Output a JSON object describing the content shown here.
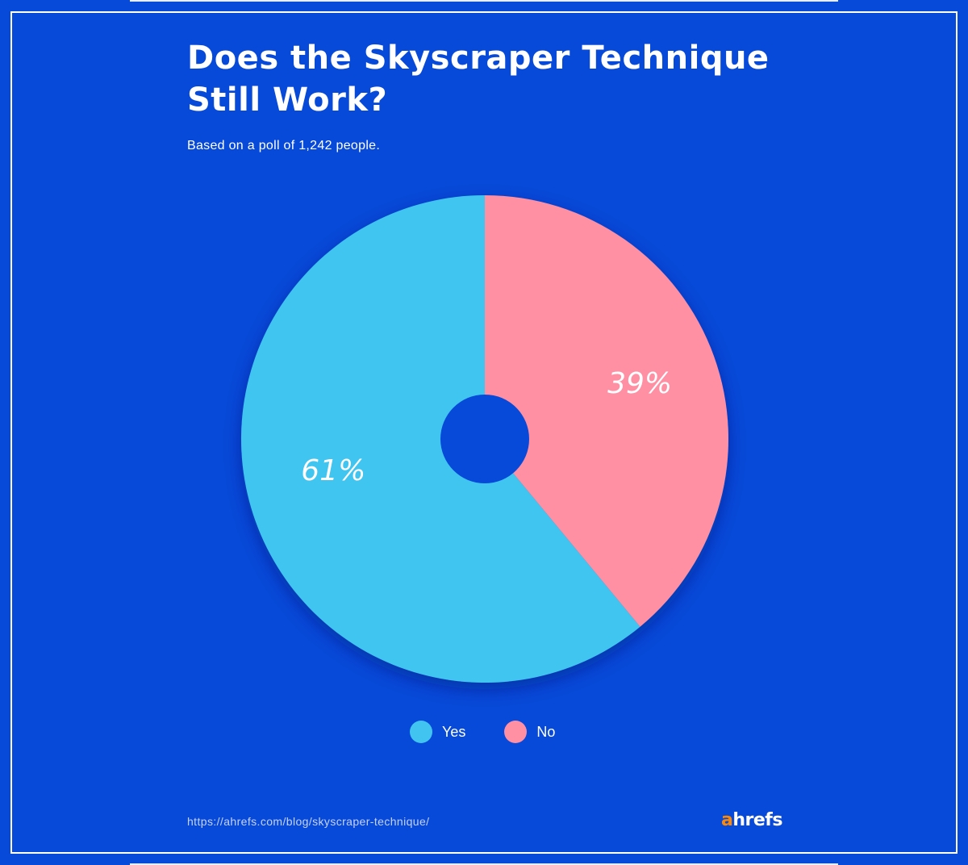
{
  "title_line1": "Does the Skyscraper Technique",
  "title_line2": "Still Work?",
  "subtitle": "Based on a poll of 1,242 people.",
  "source_url": "https://ahrefs.com/blog/skyscraper-technique/",
  "logo": {
    "accent": "a",
    "rest": "hrefs",
    "accent_color": "#ff8800"
  },
  "colors": {
    "background": "#0749d8",
    "yes": "#41c5f0",
    "no": "#ff8fa3"
  },
  "chart_data": {
    "type": "pie",
    "title": "Does the Skyscraper Technique Still Work?",
    "subtitle": "Based on a poll of 1,242 people.",
    "categories": [
      "Yes",
      "No"
    ],
    "values": [
      61,
      39
    ],
    "labels": [
      "61%",
      "39%"
    ],
    "donut_hole": true,
    "legend_position": "bottom",
    "start": "top, clockwise",
    "series": [
      {
        "name": "Yes",
        "value": 61,
        "label": "61%",
        "color": "#41c5f0"
      },
      {
        "name": "No",
        "value": 39,
        "label": "39%",
        "color": "#ff8fa3"
      }
    ]
  },
  "legend": [
    {
      "label": "Yes",
      "color": "#41c5f0"
    },
    {
      "label": "No",
      "color": "#ff8fa3"
    }
  ]
}
